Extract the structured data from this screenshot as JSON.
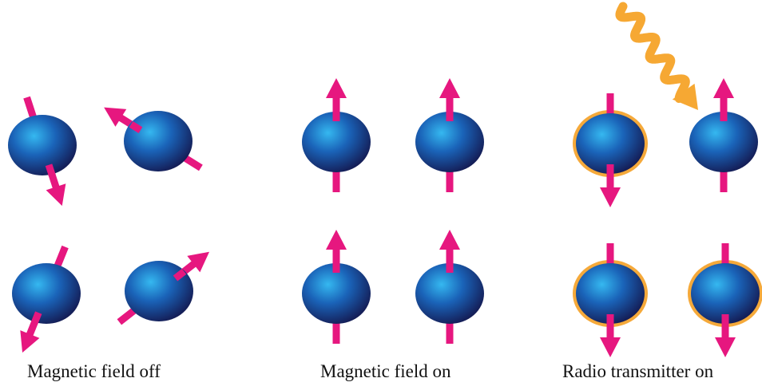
{
  "panels": [
    {
      "caption": "Magnetic field off"
    },
    {
      "caption": "Magnetic field on"
    },
    {
      "caption": "Radio transmitter on"
    }
  ],
  "colors": {
    "nucleus_light": "#2aa8e6",
    "nucleus_mid": "#1a55a8",
    "nucleus_dark": "#141a52",
    "spin_arrow": "#e6177f",
    "excited_ring": "#f5a93a",
    "radio_wave": "#f6a833"
  },
  "icons": {
    "nucleus": "sphere-icon",
    "spin": "arrow-icon",
    "wave": "wavy-arrow-icon"
  }
}
